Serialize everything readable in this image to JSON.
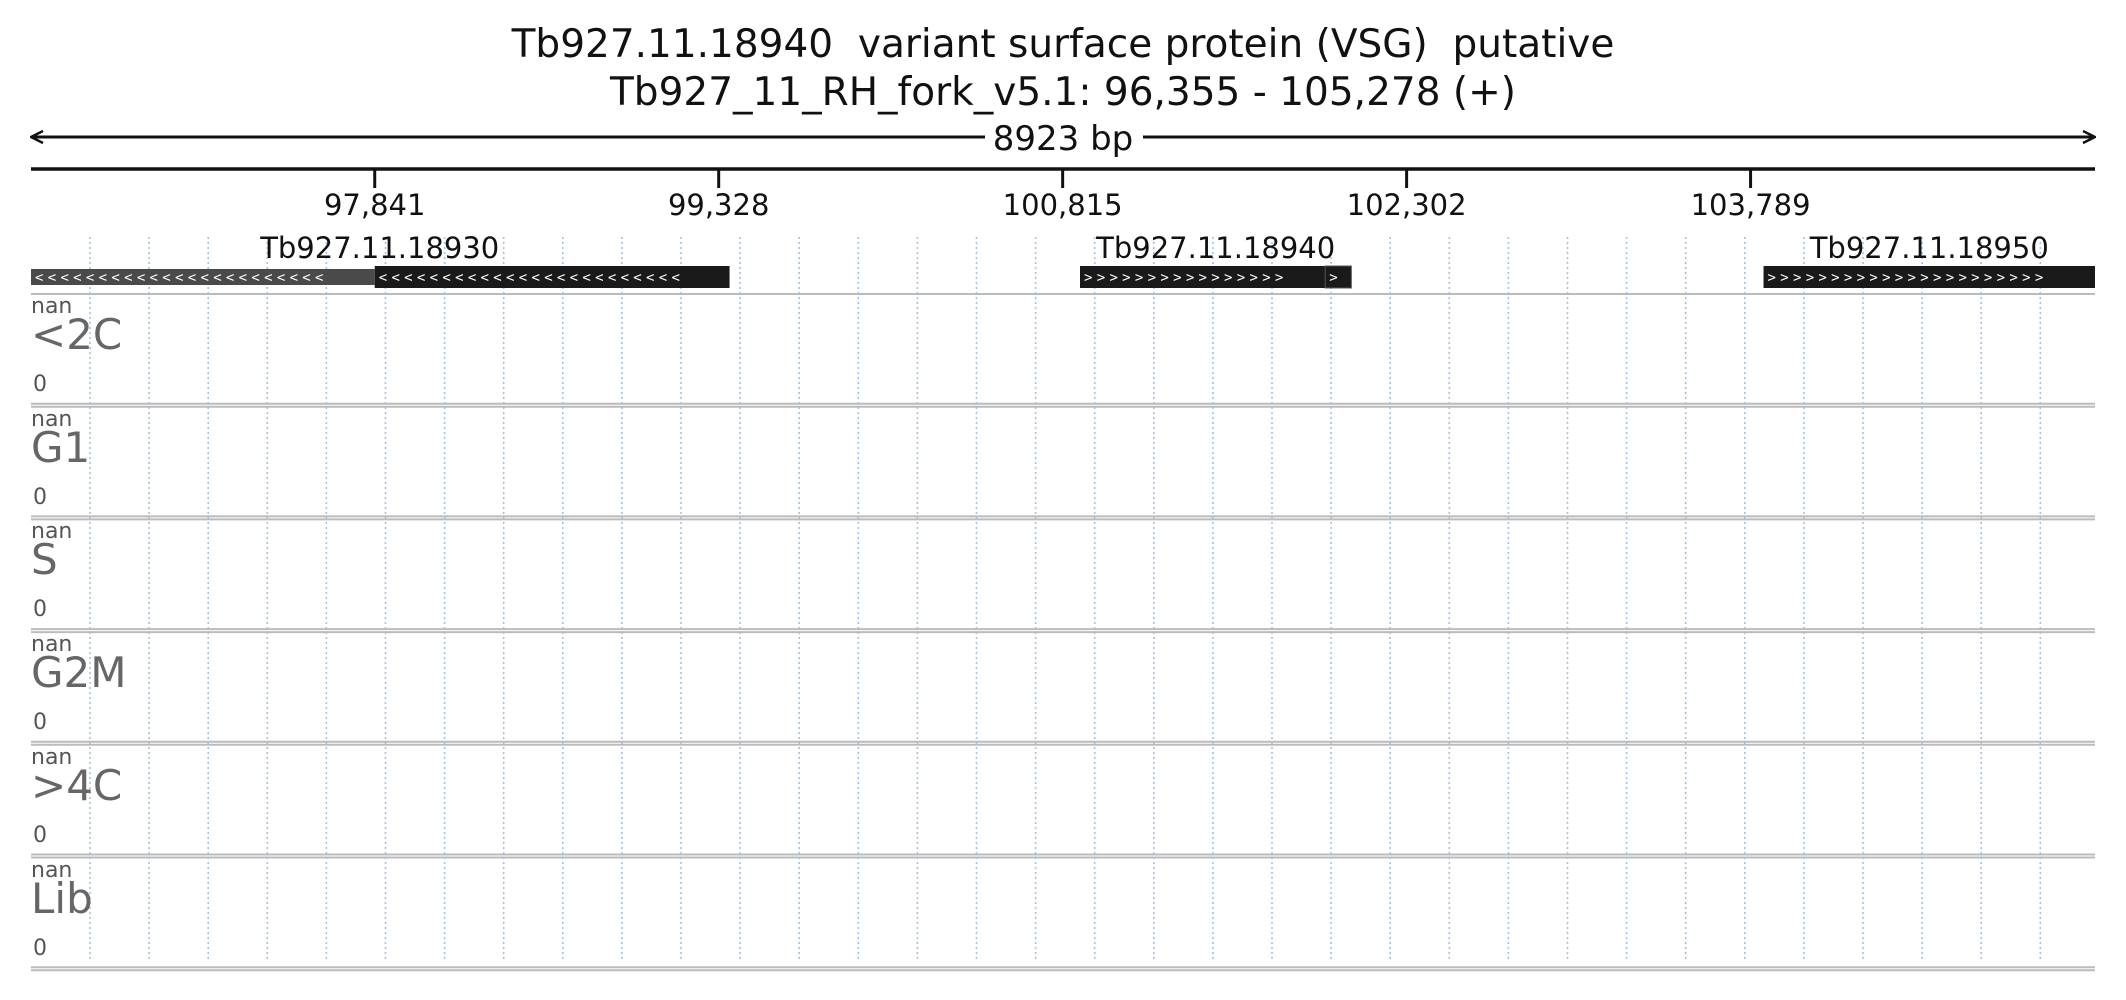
{
  "header": {
    "title": "Tb927.11.18940  variant surface protein (VSG)  putative",
    "subtitle": "Tb927_11_RH_fork_v5.1: 96,355 - 105,278 (+)",
    "span_label": "8923 bp"
  },
  "axis": {
    "start": 96355,
    "end": 105278,
    "ticks": [
      {
        "value": 97841,
        "label": "97,841"
      },
      {
        "value": 99328,
        "label": "99,328"
      },
      {
        "value": 100815,
        "label": "100,815"
      },
      {
        "value": 102302,
        "label": "102,302"
      },
      {
        "value": 103789,
        "label": "103,789"
      }
    ]
  },
  "genes": [
    {
      "name": "Tb927.11.18930",
      "strand": "-",
      "start": 96355,
      "end": 99375,
      "utr_end": 97841
    },
    {
      "name": "Tb927.11.18940",
      "strand": "+",
      "start": 100890,
      "end": 102063,
      "utr_start": 101950
    },
    {
      "name": "Tb927.11.18950",
      "strand": "+",
      "start": 103845,
      "end": 105278
    }
  ],
  "tracks": [
    {
      "label": "<2C",
      "max": "nan",
      "min": "0"
    },
    {
      "label": "G1",
      "max": "nan",
      "min": "0"
    },
    {
      "label": "S",
      "max": "nan",
      "min": "0"
    },
    {
      "label": "G2M",
      "max": "nan",
      "min": "0"
    },
    {
      "label": ">4C",
      "max": "nan",
      "min": "0"
    },
    {
      "label": "Lib",
      "max": "nan",
      "min": "0"
    }
  ],
  "colors": {
    "gene_body": "#1a1a1a",
    "utr": "#4a4a4a",
    "gridline": "#9fc3e6",
    "track_border": "#bbbbbb",
    "axis": "#111111",
    "track_label": "#666666"
  }
}
